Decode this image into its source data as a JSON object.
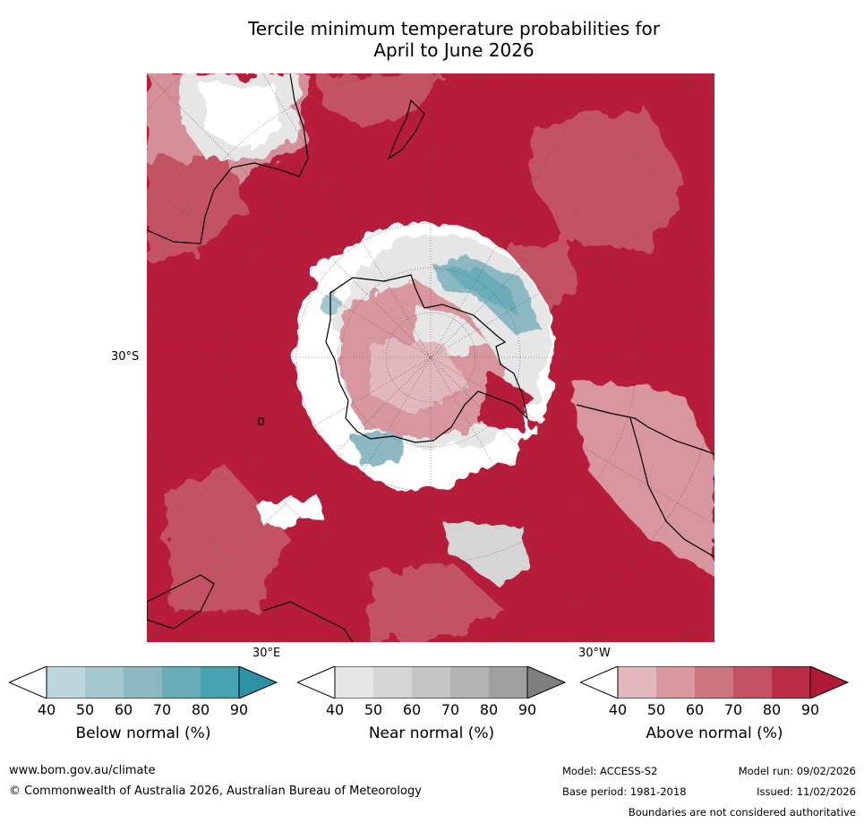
{
  "title": {
    "line1": "Tercile minimum temperature probabilities for",
    "line2": "April to June 2026"
  },
  "map": {
    "projection": "south-polar-stereographic",
    "lat_label": "30°S",
    "lon_labels": {
      "east": "30°E",
      "west": "30°W"
    },
    "colors": {
      "ocean_dominant": "#b71c3a",
      "coast": "#000000"
    }
  },
  "colorbars": [
    {
      "label": "Below normal (%)",
      "ticks": [
        "40",
        "50",
        "60",
        "70",
        "80",
        "90"
      ],
      "colors": [
        "#ffffff",
        "#bcd6dc",
        "#a5c7ce",
        "#8cb8c3",
        "#6aadb9",
        "#46a1b1",
        "#2d90a3"
      ]
    },
    {
      "label": "Near normal (%)",
      "ticks": [
        "40",
        "50",
        "60",
        "70",
        "80",
        "90"
      ],
      "colors": [
        "#ffffff",
        "#e6e6e6",
        "#d5d5d5",
        "#c5c5c5",
        "#b3b3b3",
        "#a0a0a0",
        "#7f7f7f"
      ]
    },
    {
      "label": "Above normal (%)",
      "ticks": [
        "40",
        "50",
        "60",
        "70",
        "80",
        "90"
      ],
      "colors": [
        "#ffffff",
        "#e3b7be",
        "#d8979f",
        "#cc757f",
        "#c35264",
        "#bb2d45",
        "#b01a36"
      ]
    }
  ],
  "footer": {
    "website": "www.bom.gov.au/climate",
    "copyright": "© Commonwealth of Australia 2026, Australian Bureau of Meteorology",
    "model": "Model: ACCESS-S2",
    "base_period": "Base period: 1981-2018",
    "model_run": "Model run: 09/02/2026",
    "issued": "Issued: 11/02/2026",
    "disclaimer": "Boundaries are not considered authoritative"
  }
}
